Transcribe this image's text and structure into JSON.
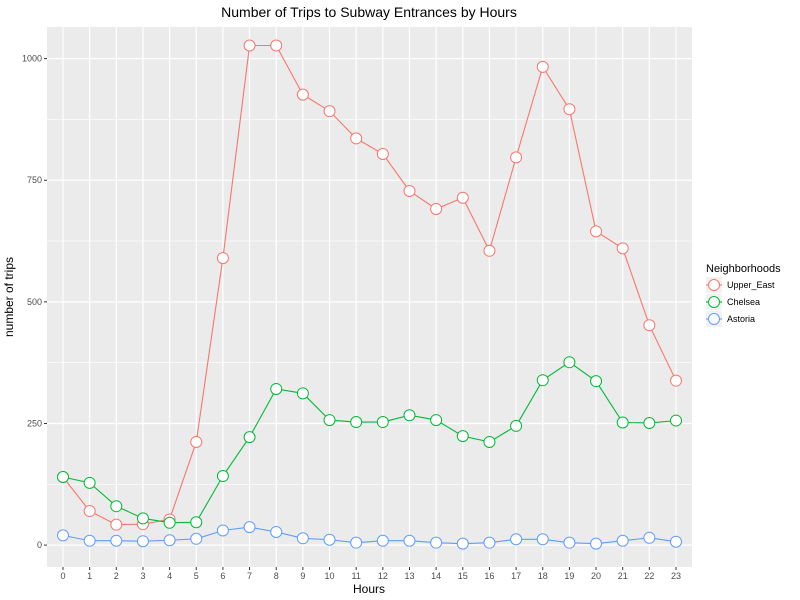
{
  "chart_data": {
    "type": "line",
    "title": "Number of Trips to Subway Entrances by Hours",
    "xlabel": "Hours",
    "ylabel": "number of trips",
    "x": [
      0,
      1,
      2,
      3,
      4,
      5,
      6,
      7,
      8,
      9,
      10,
      11,
      12,
      13,
      14,
      15,
      16,
      17,
      18,
      19,
      20,
      21,
      22,
      23
    ],
    "xlim": [
      -0.6,
      23.6
    ],
    "ylim": [
      -45,
      1065
    ],
    "yticks": [
      0,
      250,
      500,
      750,
      1000
    ],
    "ytick_labels": [
      "0",
      "250",
      "500",
      "750",
      "1000"
    ],
    "grid": true,
    "legend": {
      "title": "Neighborhoods",
      "placement": "right"
    },
    "series": [
      {
        "name": "Upper_East",
        "color": "#f8766d",
        "values": [
          140,
          70,
          42,
          43,
          53,
          212,
          590,
          1027,
          1027,
          926,
          892,
          836,
          804,
          728,
          691,
          714,
          605,
          797,
          983,
          896,
          645,
          610,
          452,
          338
        ]
      },
      {
        "name": "Chelsea",
        "color": "#00ba38",
        "values": [
          140,
          128,
          80,
          55,
          46,
          47,
          142,
          222,
          321,
          312,
          257,
          253,
          253,
          267,
          257,
          224,
          212,
          245,
          339,
          376,
          337,
          252,
          251,
          256
        ]
      },
      {
        "name": "Astoria",
        "color": "#619cff",
        "values": [
          20,
          9,
          9,
          8,
          10,
          13,
          30,
          37,
          27,
          14,
          11,
          5,
          9,
          9,
          5,
          3,
          5,
          12,
          12,
          5,
          3,
          9,
          15,
          7
        ]
      }
    ]
  }
}
